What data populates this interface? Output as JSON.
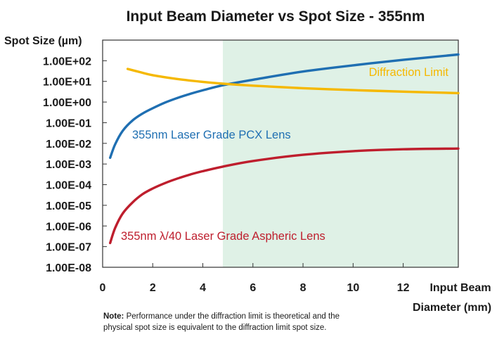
{
  "chart_data": {
    "type": "line",
    "title": "Input Beam Diameter vs Spot Size - 355nm",
    "ylabel": "Spot Size (µm)",
    "xlabel": [
      "Input Beam",
      "Diameter (mm)"
    ],
    "x_ticks": [
      0,
      2,
      4,
      6,
      8,
      10,
      12
    ],
    "x_tick_labels": [
      "0",
      "2",
      "4",
      "6",
      "8",
      "10",
      "12"
    ],
    "xlim": [
      0,
      14.2
    ],
    "y_scale": "log",
    "ylim": [
      1e-08,
      1000.0
    ],
    "y_tick_labels": [
      "1.00E+02",
      "1.00E+01",
      "1.00E+00",
      "1.00E-01",
      "1.00E-02",
      "1.00E-03",
      "1.00E-04",
      "1.00E-05",
      "1.00E-06",
      "1.00E-07",
      "1.00E-08"
    ],
    "y_tick_values": [
      100.0,
      10.0,
      1.0,
      0.1,
      0.01,
      0.001,
      0.0001,
      1e-05,
      1e-06,
      1e-07,
      1e-08
    ],
    "grid": false,
    "shaded_region": {
      "x_from": 4.8,
      "x_to": 14.2,
      "color": "#dff1e6"
    },
    "series": [
      {
        "name": "355nm Laser Grade PCX Lens",
        "color": "#1f6fb2",
        "x": [
          0.3,
          0.5,
          0.8,
          1.2,
          1.6,
          2.0,
          2.5,
          3.0,
          3.5,
          4.0,
          4.8,
          6.0,
          8.0,
          10.0,
          12.0,
          14.2
        ],
        "y": [
          0.002,
          0.009,
          0.04,
          0.13,
          0.28,
          0.5,
          0.95,
          1.6,
          2.5,
          3.7,
          6.5,
          12,
          30,
          60,
          110,
          200
        ]
      },
      {
        "name": "Diffraction Limit",
        "color": "#f5b800",
        "x": [
          1.0,
          1.5,
          2.0,
          3.0,
          4.0,
          4.8,
          6.0,
          8.0,
          10.0,
          12.0,
          14.2
        ],
        "y": [
          40,
          28,
          20,
          13,
          9.5,
          7.8,
          6.2,
          4.7,
          3.8,
          3.2,
          2.7
        ]
      },
      {
        "name": "355nm λ/40 Laser Grade Aspheric Lens",
        "color": "#be1e2d",
        "x": [
          0.3,
          0.5,
          0.8,
          1.2,
          1.6,
          2.0,
          2.5,
          3.0,
          3.5,
          4.0,
          4.8,
          6.0,
          8.0,
          10.0,
          12.0,
          14.2
        ],
        "y": [
          1.5e-07,
          8e-07,
          4e-06,
          1.4e-05,
          3.5e-05,
          6.5e-05,
          0.00012,
          0.0002,
          0.00031,
          0.00045,
          0.00075,
          0.0014,
          0.0028,
          0.0042,
          0.0052,
          0.0056
        ]
      }
    ]
  },
  "note": {
    "label": "Note:",
    "text": "Performance under the diffraction limit is theoretical and the physical spot size is equivalent to the diffraction limit spot size."
  }
}
